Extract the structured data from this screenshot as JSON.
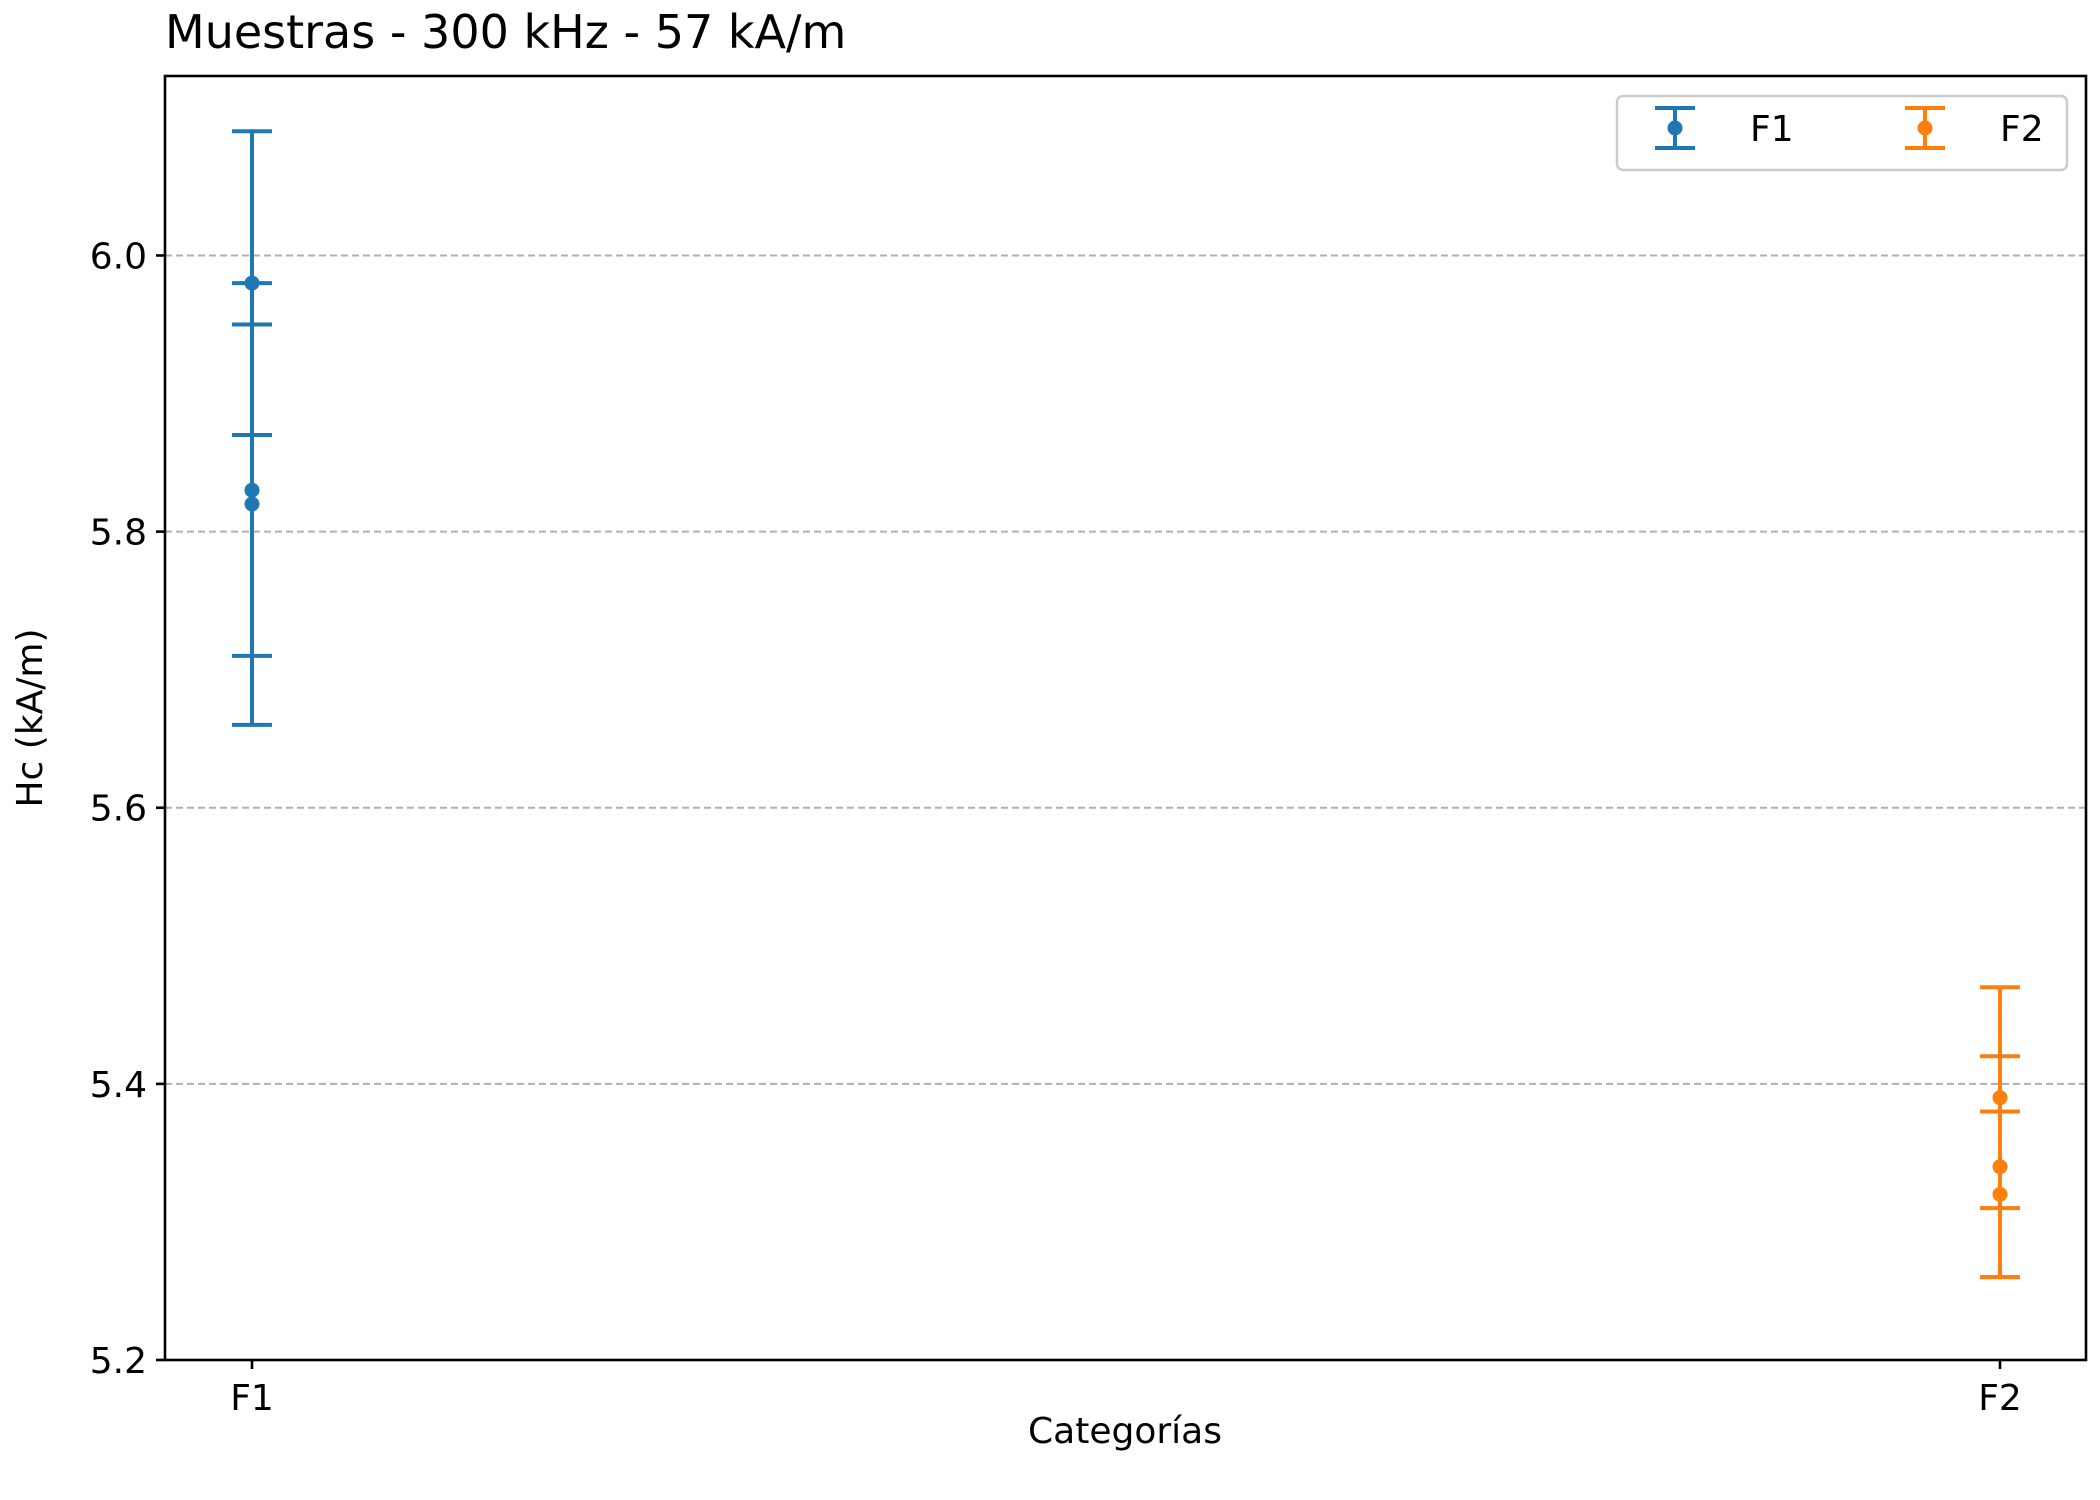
{
  "chart_data": {
    "type": "scatter",
    "title": "Muestras - 300 kHz - 57 kA/m",
    "xlabel": "Categorías",
    "ylabel": "Hc (kA/m)",
    "categories": [
      "F1",
      "F2"
    ],
    "ylim": [
      5.2,
      6.13
    ],
    "yticks": [
      5.2,
      5.4,
      5.6,
      5.8,
      6.0
    ],
    "ytick_labels": [
      "5.2",
      "5.4",
      "5.6",
      "5.8",
      "6.0"
    ],
    "grid": "y-dashed",
    "legend_position": "top-right",
    "series": [
      {
        "name": "F1",
        "color": "#1f77b4",
        "category": "F1",
        "points": [
          {
            "y": 5.98,
            "err": 0.11
          },
          {
            "y": 5.83,
            "err": 0.12
          },
          {
            "y": 5.82,
            "err": 0.16
          }
        ]
      },
      {
        "name": "F2",
        "color": "#ff7f0e",
        "category": "F2",
        "points": [
          {
            "y": 5.39,
            "err": 0.08
          },
          {
            "y": 5.34,
            "err": 0.08
          },
          {
            "y": 5.32,
            "err": 0.06
          }
        ]
      }
    ]
  }
}
